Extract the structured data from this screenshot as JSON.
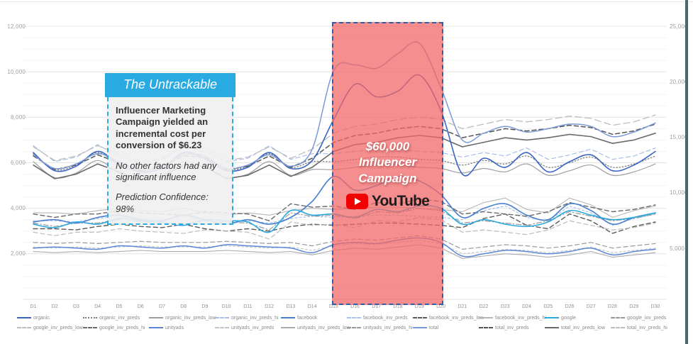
{
  "page": {
    "right_strip_color": "#4d6673",
    "background": "#ffffff"
  },
  "annotation_box": {
    "title": "The Untrackable",
    "header_color": "#29aae1",
    "line1": "Influencer Marketing Campaign yielded an incremental cost per conversion of $6.23",
    "line2": "No other factors had any significant influence",
    "line3": "Prediction Confidence: 98%"
  },
  "campaign": {
    "label_line1": "$60,000",
    "label_line2": "Influencer",
    "label_line3": "Campaign",
    "brand": "YouTube",
    "fill_color": "#f26767",
    "border_color": "#2f5fa8",
    "youtube_red": "#f20000"
  },
  "chart_data": {
    "type": "line",
    "x_labels": [
      "D1",
      "D2",
      "D3",
      "D4",
      "D5",
      "D6",
      "D7",
      "D8",
      "D9",
      "D10",
      "D11",
      "D12",
      "D13",
      "D14",
      "D15",
      "D16",
      "D17",
      "D18",
      "D19",
      "D20",
      "D21",
      "D22",
      "D23",
      "D24",
      "D25",
      "D26",
      "D27",
      "D28",
      "D29",
      "D30"
    ],
    "y_left": {
      "labels": [
        "12,000",
        "10,000",
        "8,000",
        "6,000",
        "4,000",
        "2,000"
      ],
      "values": [
        12000,
        10000,
        8000,
        6000,
        4000,
        2000
      ],
      "range": [
        0,
        12400
      ],
      "grid": true
    },
    "y_right": {
      "labels": [
        "25,000",
        "20,000",
        "15,000",
        "10,000",
        "5,000"
      ],
      "values": [
        25000,
        20000,
        15000,
        10000,
        5000
      ],
      "range": [
        0,
        25600
      ]
    },
    "legend_position": "bottom",
    "highlight_region": {
      "from_index": 14,
      "to_index": 19
    },
    "series": [
      {
        "name": "organic",
        "color": "#3b64c4",
        "dash": "solid",
        "width": 1.6,
        "main": true,
        "smooth": true,
        "values": [
          6450,
          5650,
          5850,
          6500,
          5950,
          5600,
          5750,
          6450,
          6200,
          5650,
          5800,
          6450,
          5750,
          6100,
          7900,
          9450,
          8900,
          9150,
          9850,
          8300,
          5500,
          6200,
          5800,
          6450,
          5600,
          6050,
          6350,
          5650,
          5900,
          6500
        ]
      },
      {
        "name": "organic_inv_preds",
        "color": "#7a7a7a",
        "dash": "dot",
        "width": 1.2,
        "main": false,
        "smooth": true,
        "values": [
          6400,
          5700,
          5900,
          6450,
          5900,
          5650,
          5800,
          6400,
          6150,
          5700,
          5850,
          6400,
          5800,
          6050,
          6050,
          6150,
          6250,
          6250,
          6150,
          6100,
          5900,
          6100,
          5950,
          6300,
          5800,
          6000,
          6250,
          5800,
          5950,
          6300
        ]
      },
      {
        "name": "organic_inv_preds_low",
        "color": "#9e9e9e",
        "dash": "solid",
        "width": 1.2,
        "main": false,
        "smooth": true,
        "values": [
          6050,
          5350,
          5550,
          6100,
          5550,
          5300,
          5450,
          6050,
          5800,
          5350,
          5500,
          6050,
          5450,
          5700,
          5700,
          5800,
          5900,
          5900,
          5800,
          5750,
          5550,
          5750,
          5600,
          5950,
          5450,
          5650,
          5900,
          5450,
          5600,
          5950
        ]
      },
      {
        "name": "organic_inv_preds_hi",
        "color": "#a9bfe6",
        "dash": "dash",
        "width": 1.2,
        "main": false,
        "smooth": false,
        "values": [
          6750,
          6050,
          6250,
          6800,
          6250,
          6000,
          6150,
          6750,
          6500,
          6050,
          6200,
          6750,
          6150,
          6400,
          6400,
          6500,
          6600,
          6600,
          6500,
          6450,
          6250,
          6450,
          6300,
          6650,
          6150,
          6350,
          6600,
          6150,
          6300,
          6650
        ]
      },
      {
        "name": "facebook",
        "color": "#4a7fd0",
        "dash": "solid",
        "width": 1.6,
        "main": true,
        "smooth": true,
        "values": [
          3400,
          3500,
          3350,
          3600,
          3700,
          3500,
          3450,
          3700,
          3500,
          3300,
          3500,
          3300,
          3600,
          4300,
          5400,
          4800,
          5000,
          5400,
          5200,
          4600,
          3600,
          4000,
          4200,
          3700,
          3500,
          4200,
          3900,
          3300,
          3600,
          3800
        ]
      },
      {
        "name": "facebook_inv_preds",
        "color": "#a5c4ea",
        "dash": "shortdash",
        "width": 1.2,
        "main": false,
        "smooth": false,
        "values": [
          3450,
          3450,
          3400,
          3550,
          3650,
          3550,
          3500,
          3650,
          3450,
          3350,
          3450,
          3350,
          3550,
          3650,
          3600,
          3650,
          3700,
          3700,
          3650,
          3600,
          3500,
          3900,
          4100,
          3600,
          3450,
          4100,
          3800,
          3250,
          3550,
          3750
        ]
      },
      {
        "name": "facebook_inv_preds_low",
        "color": "#5a5a5a",
        "dash": "dash",
        "width": 1.4,
        "main": false,
        "smooth": false,
        "values": [
          3100,
          3100,
          3050,
          3200,
          3300,
          3200,
          3150,
          3300,
          3100,
          3000,
          3100,
          3000,
          3200,
          3300,
          3250,
          3300,
          3350,
          3350,
          3300,
          3250,
          3150,
          3550,
          3750,
          3250,
          3100,
          3750,
          3450,
          2900,
          3200,
          3400
        ]
      },
      {
        "name": "facebook_inv_preds_hi",
        "color": "#b5b5b5",
        "dash": "solid",
        "width": 1.1,
        "main": false,
        "smooth": false,
        "values": [
          3800,
          3800,
          3750,
          3900,
          4000,
          3900,
          3850,
          4000,
          3800,
          3700,
          3800,
          3700,
          3900,
          4000,
          3950,
          4000,
          4050,
          4050,
          4000,
          3950,
          3850,
          4250,
          4450,
          3950,
          3800,
          4450,
          4150,
          3600,
          3900,
          4100
        ]
      },
      {
        "name": "google",
        "color": "#2aa9e0",
        "dash": "solid",
        "width": 1.6,
        "main": true,
        "smooth": true,
        "values": [
          3300,
          3150,
          3400,
          3300,
          3550,
          3450,
          3400,
          3250,
          3500,
          3450,
          3400,
          2950,
          3900,
          3700,
          3750,
          3600,
          3950,
          3850,
          4100,
          4000,
          3300,
          3500,
          3300,
          3200,
          3400,
          3900,
          3700,
          3500,
          3600,
          3800
        ]
      },
      {
        "name": "google_inv_preds",
        "color": "#9a9a9a",
        "dash": "dashdot",
        "width": 1.2,
        "main": false,
        "smooth": false,
        "values": [
          3350,
          3200,
          3350,
          3350,
          3500,
          3400,
          3350,
          3300,
          3450,
          3400,
          3350,
          3050,
          3800,
          3650,
          3700,
          3550,
          3850,
          3800,
          4000,
          3900,
          3350,
          3450,
          3350,
          3250,
          3450,
          3850,
          3650,
          3450,
          3550,
          3750
        ]
      },
      {
        "name": "google_inv_preds_low",
        "color": "#bcbcbc",
        "dash": "dash",
        "width": 1.2,
        "main": false,
        "smooth": false,
        "values": [
          2950,
          2800,
          2950,
          2950,
          3100,
          3000,
          2950,
          2900,
          3050,
          3000,
          2950,
          2650,
          3400,
          3250,
          3300,
          3150,
          3450,
          3400,
          3600,
          3500,
          2950,
          3050,
          2950,
          2850,
          3050,
          3450,
          3250,
          3050,
          3150,
          3350
        ]
      },
      {
        "name": "google_inv_preds_hi",
        "color": "#6a6a6a",
        "dash": "dash",
        "width": 1.4,
        "main": false,
        "smooth": false,
        "values": [
          3750,
          3600,
          3750,
          3750,
          3900,
          3800,
          3750,
          3700,
          3850,
          3800,
          3750,
          3450,
          4200,
          4050,
          4100,
          3950,
          4250,
          4200,
          4400,
          4300,
          3750,
          3850,
          3750,
          3650,
          3850,
          4250,
          4050,
          3850,
          3950,
          4150
        ]
      },
      {
        "name": "unityads",
        "color": "#5b86d6",
        "dash": "solid",
        "width": 1.5,
        "main": true,
        "smooth": true,
        "values": [
          2250,
          2300,
          2250,
          2200,
          2350,
          2300,
          2250,
          2350,
          2250,
          2400,
          2350,
          2300,
          2250,
          2050,
          2400,
          2500,
          2450,
          2600,
          2700,
          2500,
          1900,
          2000,
          2150,
          2100,
          2000,
          2100,
          2250,
          1950,
          2100,
          2200
        ]
      },
      {
        "name": "unityads_inv_preds",
        "color": "#c4c4c4",
        "dash": "shortdash",
        "width": 1.1,
        "main": false,
        "smooth": false,
        "values": [
          2300,
          2250,
          2300,
          2250,
          2300,
          2350,
          2300,
          2300,
          2300,
          2350,
          2300,
          2250,
          2300,
          2150,
          2350,
          2450,
          2400,
          2500,
          2600,
          2450,
          2000,
          2100,
          2200,
          2150,
          2050,
          2150,
          2300,
          2050,
          2150,
          2250
        ]
      },
      {
        "name": "unityads_inv_preds_low",
        "color": "#ababab",
        "dash": "solid",
        "width": 1.1,
        "main": false,
        "smooth": false,
        "values": [
          2100,
          2050,
          2100,
          2050,
          2100,
          2150,
          2100,
          2100,
          2100,
          2150,
          2100,
          2050,
          2100,
          1950,
          2150,
          2250,
          2200,
          2300,
          2400,
          2250,
          1800,
          1900,
          2000,
          1950,
          1850,
          1950,
          2100,
          1850,
          1950,
          2050
        ]
      },
      {
        "name": "unityads_inv_preds_hi",
        "color": "#9a9a9a",
        "dash": "dash",
        "width": 1.2,
        "main": false,
        "smooth": false,
        "values": [
          2500,
          2450,
          2500,
          2450,
          2500,
          2550,
          2500,
          2500,
          2500,
          2550,
          2500,
          2450,
          2500,
          2350,
          2550,
          2650,
          2600,
          2700,
          2800,
          2650,
          2200,
          2300,
          2400,
          2350,
          2250,
          2350,
          2500,
          2250,
          2350,
          2450
        ]
      },
      {
        "name": "total",
        "color": "#7b99d4",
        "dash": "solid",
        "width": 1.5,
        "main": true,
        "smooth": true,
        "values": [
          6350,
          5750,
          5950,
          6400,
          6050,
          5700,
          5850,
          6350,
          6300,
          5750,
          5900,
          6350,
          5850,
          6600,
          10050,
          10300,
          10150,
          10800,
          11250,
          9300,
          7000,
          7300,
          7600,
          7350,
          7500,
          7700,
          7600,
          7150,
          7350,
          7750
        ]
      },
      {
        "name": "total_inv_preds",
        "color": "#555555",
        "dash": "dash",
        "width": 1.5,
        "main": false,
        "smooth": false,
        "values": [
          6300,
          5700,
          5900,
          6350,
          6000,
          5650,
          5800,
          6300,
          6250,
          5700,
          5850,
          6300,
          5800,
          6200,
          6900,
          7200,
          7300,
          7500,
          7600,
          7500,
          7100,
          7300,
          7500,
          7400,
          7500,
          7650,
          7550,
          7250,
          7400,
          7700
        ]
      },
      {
        "name": "total_inv_preds_low",
        "color": "#6a6a6a",
        "dash": "solid",
        "width": 1.6,
        "main": false,
        "smooth": false,
        "values": [
          5900,
          5300,
          5500,
          5950,
          5600,
          5250,
          5400,
          5900,
          5850,
          5300,
          5450,
          5900,
          5400,
          5800,
          6500,
          6800,
          6900,
          7100,
          7200,
          7100,
          6700,
          6900,
          7100,
          7000,
          7100,
          7250,
          7150,
          6850,
          7000,
          7300
        ]
      },
      {
        "name": "total_inv_preds_hi",
        "color": "#bdbdbd",
        "dash": "longdash",
        "width": 1.3,
        "main": false,
        "smooth": false,
        "values": [
          6700,
          6100,
          6300,
          6750,
          6400,
          6050,
          6200,
          6700,
          6650,
          6100,
          6250,
          6700,
          6200,
          6600,
          7300,
          7600,
          7700,
          7900,
          8000,
          7900,
          7500,
          7700,
          7900,
          7800,
          7900,
          8050,
          7950,
          7650,
          7800,
          8100
        ]
      }
    ]
  }
}
